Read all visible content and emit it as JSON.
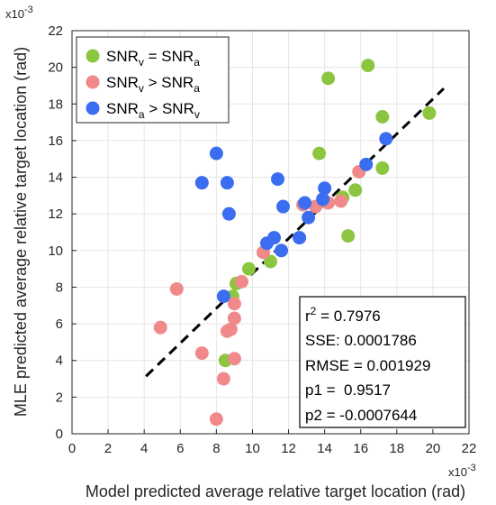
{
  "chart_data": {
    "type": "scatter",
    "xlabel": "Model predicted average relative target location (rad)",
    "ylabel": "MLE predicted average relative target location (rad)",
    "x_exponent": "x10",
    "x_exponent_power": "-3",
    "y_exponent": "x10",
    "y_exponent_power": "-3",
    "xlim": [
      0,
      22
    ],
    "ylim": [
      0,
      22
    ],
    "xticks": [
      "0",
      "2",
      "4",
      "6",
      "8",
      "10",
      "12",
      "14",
      "16",
      "18",
      "20",
      "22"
    ],
    "yticks": [
      "0",
      "2",
      "4",
      "6",
      "8",
      "10",
      "12",
      "14",
      "16",
      "18",
      "20",
      "22"
    ],
    "grid": true,
    "legend_position": "top-left",
    "series": [
      {
        "name_parts": [
          [
            "SNR",
            ""
          ],
          [
            "v",
            "sub"
          ],
          [
            " = SNR",
            ""
          ],
          [
            "a",
            "sub"
          ]
        ],
        "color": "#8cc640",
        "points": [
          [
            8.5,
            4.0
          ],
          [
            8.9,
            7.5
          ],
          [
            9.1,
            8.2
          ],
          [
            9.8,
            9.0
          ],
          [
            11.0,
            9.4
          ],
          [
            13.7,
            15.3
          ],
          [
            14.2,
            19.4
          ],
          [
            15.0,
            12.9
          ],
          [
            15.3,
            10.8
          ],
          [
            15.7,
            13.3
          ],
          [
            16.4,
            20.1
          ],
          [
            17.2,
            17.3
          ],
          [
            17.2,
            14.5
          ],
          [
            19.8,
            17.5
          ]
        ]
      },
      {
        "name_parts": [
          [
            "SNR",
            ""
          ],
          [
            "v",
            "sub"
          ],
          [
            " > SNR",
            ""
          ],
          [
            "a",
            "sub"
          ]
        ],
        "color": "#f08a8a",
        "points": [
          [
            4.9,
            5.8
          ],
          [
            5.8,
            7.9
          ],
          [
            7.2,
            4.4
          ],
          [
            8.0,
            0.8
          ],
          [
            8.4,
            3.0
          ],
          [
            8.6,
            5.6
          ],
          [
            8.8,
            5.7
          ],
          [
            9.0,
            4.1
          ],
          [
            9.0,
            6.3
          ],
          [
            9.0,
            7.1
          ],
          [
            9.4,
            8.3
          ],
          [
            10.6,
            9.9
          ],
          [
            12.8,
            12.5
          ],
          [
            13.5,
            12.4
          ],
          [
            14.2,
            12.6
          ],
          [
            14.9,
            12.7
          ],
          [
            15.9,
            14.3
          ]
        ]
      },
      {
        "name_parts": [
          [
            "SNR",
            ""
          ],
          [
            "a",
            "sub"
          ],
          [
            " > SNR",
            ""
          ],
          [
            "v",
            "sub"
          ]
        ],
        "color": "#3b6df0",
        "points": [
          [
            7.2,
            13.7
          ],
          [
            8.0,
            15.3
          ],
          [
            8.4,
            7.5
          ],
          [
            8.6,
            13.7
          ],
          [
            8.7,
            12.0
          ],
          [
            10.8,
            10.4
          ],
          [
            11.2,
            10.7
          ],
          [
            11.4,
            13.9
          ],
          [
            11.6,
            10.0
          ],
          [
            11.7,
            12.4
          ],
          [
            12.6,
            10.7
          ],
          [
            12.9,
            12.6
          ],
          [
            13.1,
            11.8
          ],
          [
            13.9,
            12.8
          ],
          [
            14.0,
            13.4
          ],
          [
            16.3,
            14.7
          ],
          [
            17.4,
            16.1
          ]
        ]
      }
    ],
    "fit_line": {
      "style": "dashed",
      "color": "#000000",
      "x": [
        4.1,
        20.6
      ]
    },
    "stats": {
      "r2_label_base": "r",
      "r2_label_power": "2",
      "r2_value": " = 0.7976",
      "sse": "SSE: 0.0001786",
      "rmse": "RMSE = 0.001929",
      "p1": "p1 =  0.9517",
      "p2": "p2 = -0.0007644",
      "p1_value": 0.9517,
      "p2_value": -0.0007644
    }
  }
}
